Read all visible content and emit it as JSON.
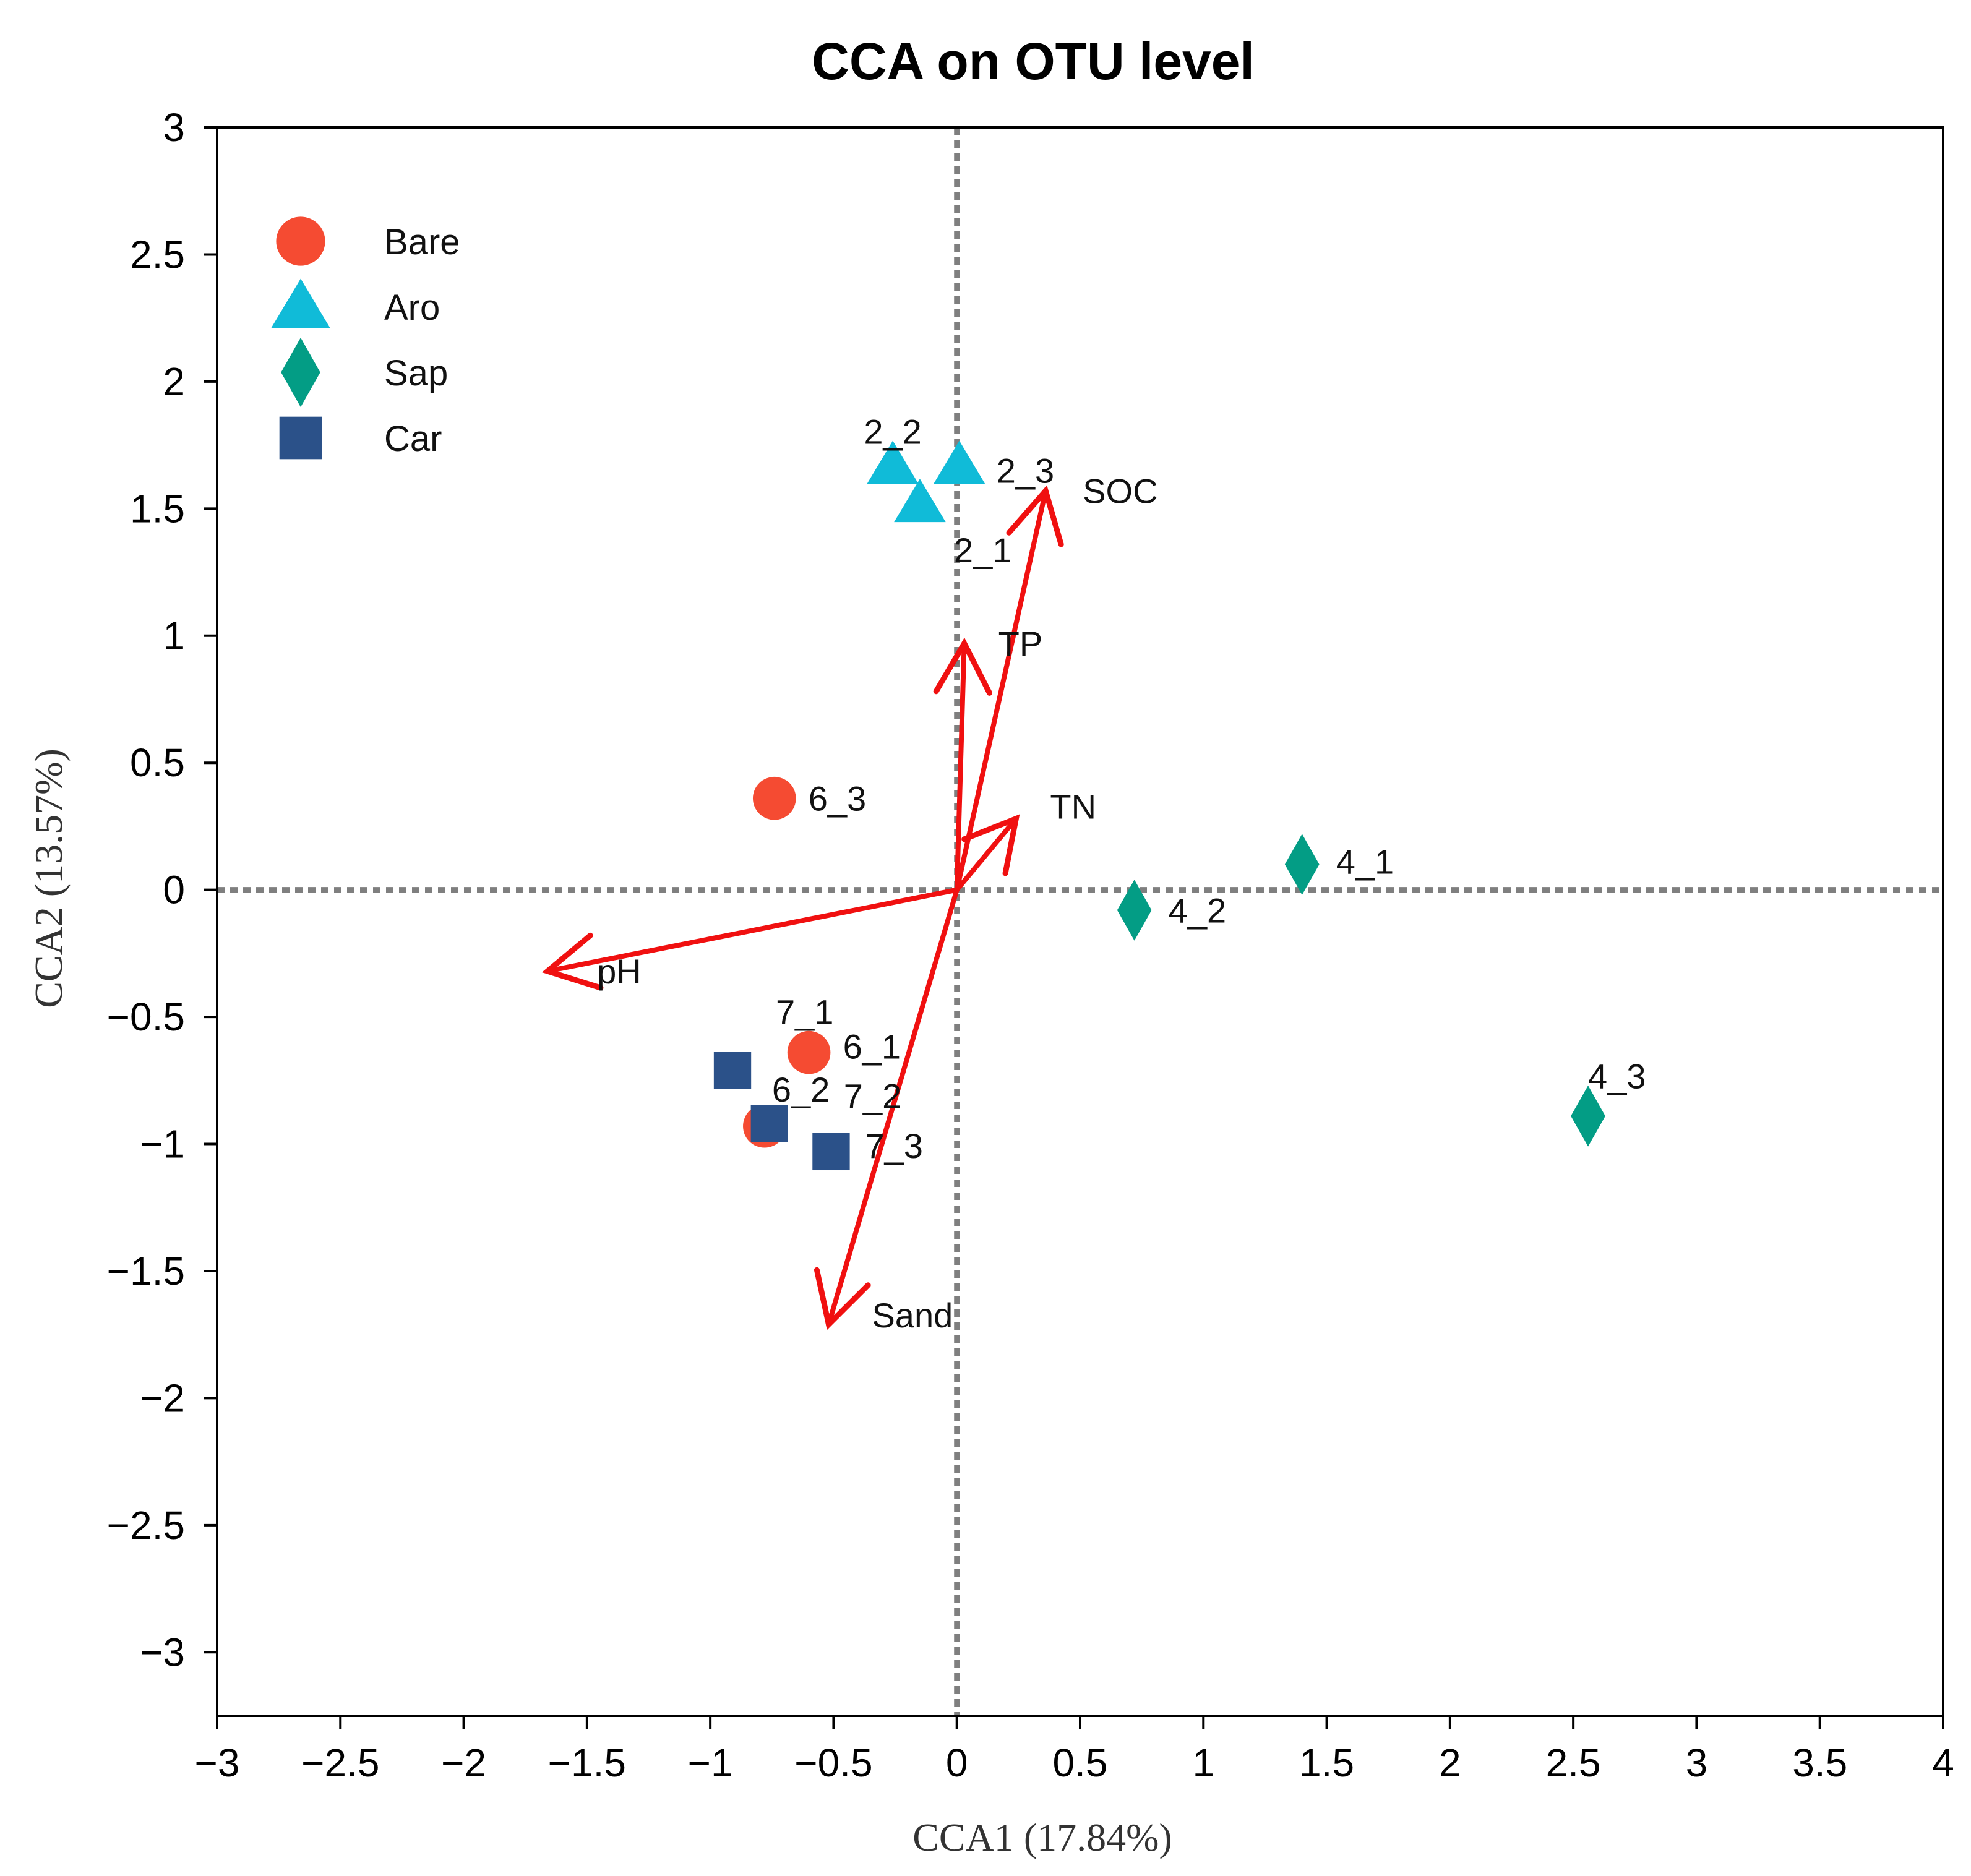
{
  "chart_data": {
    "type": "scatter",
    "title": "CCA on OTU level",
    "xlabel": "CCA1 (17.84%)",
    "ylabel": "CCA2 (13.57%)",
    "xlim": [
      -3,
      4
    ],
    "ylim": [
      -3.25,
      3
    ],
    "x_ticks": [
      -3,
      -2.5,
      -2,
      -1.5,
      -1,
      -0.5,
      0,
      0.5,
      1,
      1.5,
      2,
      2.5,
      3,
      3.5,
      4
    ],
    "y_ticks": [
      3,
      2.5,
      2,
      1.5,
      1,
      0.5,
      0,
      -0.5,
      -1,
      -1.5,
      -2,
      -2.5,
      -3
    ],
    "reference_lines": {
      "x": 0,
      "y": 0,
      "style": "dotted"
    },
    "legend_position": "top-left",
    "series": [
      {
        "name": "Bare",
        "marker": "circle",
        "color": "#F54B32",
        "points": [
          {
            "label": "6_3",
            "x": -0.74,
            "y": 0.36
          },
          {
            "label": "6_1",
            "x": -0.6,
            "y": -0.64
          },
          {
            "label": "6_2",
            "x": -0.78,
            "y": -0.93
          }
        ]
      },
      {
        "name": "Aro",
        "marker": "triangle",
        "color": "#10BBD8",
        "points": [
          {
            "label": "2_2",
            "x": -0.26,
            "y": 1.67
          },
          {
            "label": "2_3",
            "x": 0.01,
            "y": 1.67
          },
          {
            "label": "2_1",
            "x": -0.15,
            "y": 1.52
          }
        ]
      },
      {
        "name": "Sap",
        "marker": "diamond",
        "color": "#039D85",
        "points": [
          {
            "label": "4_1",
            "x": 1.4,
            "y": 0.1
          },
          {
            "label": "4_2",
            "x": 0.72,
            "y": -0.08
          },
          {
            "label": "4_3",
            "x": 2.56,
            "y": -0.89
          }
        ]
      },
      {
        "name": "Car",
        "marker": "square",
        "color": "#2B5189",
        "points": [
          {
            "label": "7_1",
            "x": -0.91,
            "y": -0.71
          },
          {
            "label": "7_2",
            "x": -0.76,
            "y": -0.92
          },
          {
            "label": "7_3",
            "x": -0.51,
            "y": -1.03
          }
        ]
      }
    ],
    "arrows": [
      {
        "label": "SOC",
        "x": 0.36,
        "y": 1.57
      },
      {
        "label": "TP",
        "x": 0.03,
        "y": 0.97
      },
      {
        "label": "TN",
        "x": 0.24,
        "y": 0.28
      },
      {
        "label": "pH",
        "x": -1.66,
        "y": -0.32
      },
      {
        "label": "Sand",
        "x": -0.52,
        "y": -1.71
      }
    ]
  },
  "colors": {
    "arrow": "#F01010",
    "axis": "#000000",
    "reference": "#7F7F7F"
  }
}
